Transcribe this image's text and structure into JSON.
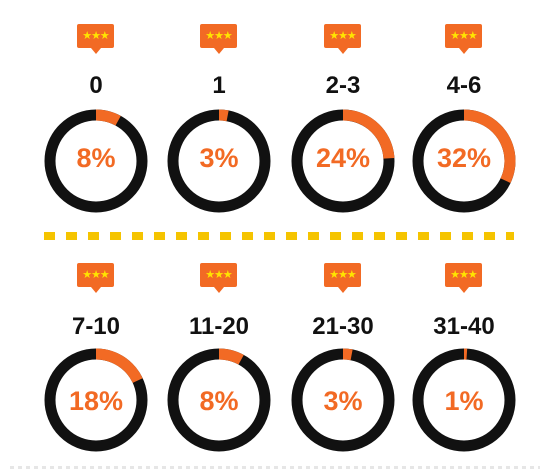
{
  "chart_data": {
    "type": "donut",
    "categories": [
      "0",
      "1",
      "2-3",
      "4-6",
      "7-10",
      "11-20",
      "21-30",
      "31-40"
    ],
    "values": [
      8,
      3,
      24,
      32,
      18,
      8,
      3,
      1
    ],
    "value_labels": [
      "8%",
      "3%",
      "24%",
      "32%",
      "18%",
      "8%",
      "3%",
      "1%"
    ],
    "badge_icon": "three-star-speech-bubble-icon",
    "badge_stars": "★★★",
    "colors": {
      "accent": "#f26a24",
      "ring": "#111111",
      "stars": "#ffe400",
      "divider": "#f5c400"
    }
  }
}
